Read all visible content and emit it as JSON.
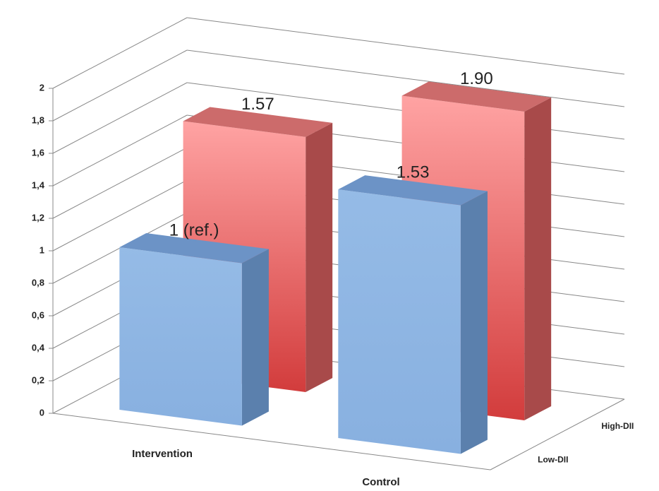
{
  "chart_data": {
    "type": "bar3d",
    "categories": [
      "Intervention",
      "Control"
    ],
    "series": [
      {
        "name": "Low-DII",
        "color": "#8db4e2",
        "values": [
          1,
          1.53
        ],
        "value_labels": [
          "1 (ref.)",
          "1.53"
        ]
      },
      {
        "name": "High-DII",
        "color": "#f07070",
        "values": [
          1.57,
          1.9
        ],
        "value_labels": [
          "1.57",
          "1.90"
        ]
      }
    ],
    "ylim": [
      0,
      2
    ],
    "yticks": [
      0,
      {
        "value": 0.2,
        "label": "0,2"
      },
      {
        "value": 0.4,
        "label": "0,4"
      },
      {
        "value": 0.6,
        "label": "0,6"
      },
      {
        "value": 0.8,
        "label": "0,8"
      },
      1,
      {
        "value": 1.2,
        "label": "1,2"
      },
      {
        "value": 1.4,
        "label": "1,4"
      },
      {
        "value": 1.6,
        "label": "1,6"
      },
      {
        "value": 1.8,
        "label": "1,8"
      },
      2
    ],
    "grid": true
  }
}
